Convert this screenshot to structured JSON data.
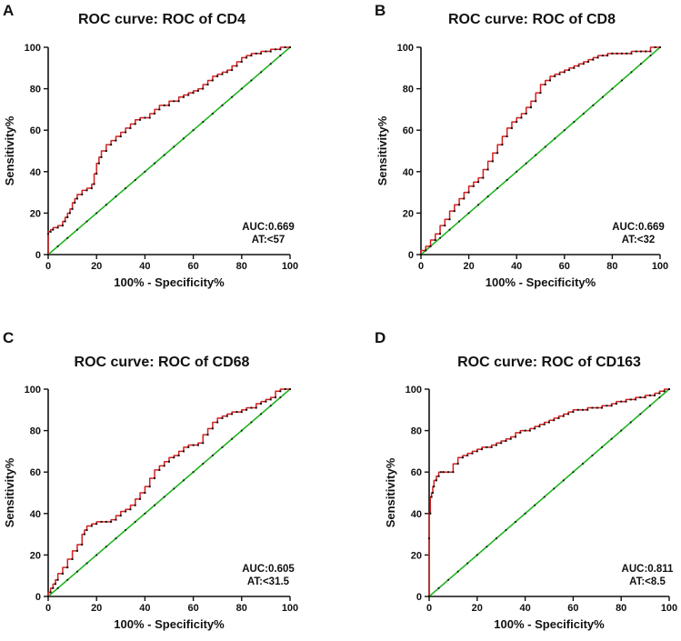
{
  "colors": {
    "roc": "#d22020",
    "reference": "#22b522",
    "axis": "#111111",
    "points": "#111111"
  },
  "chart_data": [
    {
      "panel_letter": "A",
      "type": "line",
      "title": "ROC curve: ROC of CD4",
      "xlabel": "100% - Specificity%",
      "ylabel": "Sensitivity%",
      "xlim": [
        0,
        100
      ],
      "ylim": [
        0,
        100
      ],
      "xticks": [
        0,
        20,
        40,
        60,
        80,
        100
      ],
      "yticks": [
        0,
        20,
        40,
        60,
        80,
        100
      ],
      "auc_label": "AUC:0.669",
      "at_label": "AT:<57",
      "series": [
        {
          "name": "ROC",
          "x": [
            0,
            0,
            1,
            2,
            4,
            6,
            7,
            8,
            9,
            10,
            11,
            12,
            14,
            16,
            18,
            19,
            20,
            21,
            22,
            24,
            26,
            28,
            30,
            32,
            34,
            36,
            38,
            40,
            42,
            44,
            46,
            48,
            50,
            52,
            54,
            56,
            58,
            60,
            62,
            64,
            66,
            68,
            70,
            72,
            74,
            76,
            78,
            80,
            82,
            84,
            86,
            88,
            90,
            92,
            94,
            96,
            98,
            100
          ],
          "y": [
            0,
            10,
            11,
            12,
            13,
            14,
            16,
            18,
            20,
            22,
            25,
            27,
            29,
            31,
            32,
            34,
            39,
            44,
            47,
            50,
            53,
            55,
            57,
            59,
            61,
            63,
            65,
            66,
            66,
            68,
            70,
            72,
            72,
            74,
            74,
            76,
            77,
            78,
            79,
            80,
            82,
            84,
            86,
            87,
            88,
            89,
            91,
            93,
            95,
            96,
            97,
            97,
            98,
            98,
            99,
            99,
            100,
            100
          ]
        },
        {
          "name": "Reference",
          "x": [
            0,
            100
          ],
          "y": [
            0,
            100
          ]
        }
      ]
    },
    {
      "panel_letter": "B",
      "type": "line",
      "title": "ROC curve: ROC of CD8",
      "xlabel": "100% - Specificity%",
      "ylabel": "Sensitivity%",
      "xlim": [
        0,
        100
      ],
      "ylim": [
        0,
        100
      ],
      "xticks": [
        0,
        20,
        40,
        60,
        80,
        100
      ],
      "yticks": [
        0,
        20,
        40,
        60,
        80,
        100
      ],
      "auc_label": "AUC:0.669",
      "at_label": "AT:<32",
      "series": [
        {
          "name": "ROC",
          "x": [
            0,
            2,
            4,
            6,
            8,
            10,
            12,
            14,
            16,
            18,
            20,
            22,
            24,
            26,
            28,
            30,
            32,
            34,
            36,
            38,
            40,
            42,
            44,
            46,
            48,
            50,
            52,
            54,
            56,
            58,
            60,
            62,
            64,
            66,
            68,
            70,
            72,
            74,
            76,
            78,
            80,
            82,
            84,
            86,
            88,
            90,
            92,
            94,
            96,
            98,
            100
          ],
          "y": [
            0,
            2,
            4,
            7,
            10,
            14,
            17,
            21,
            24,
            27,
            30,
            33,
            35,
            37,
            41,
            45,
            49,
            53,
            57,
            61,
            64,
            66,
            68,
            71,
            74,
            78,
            82,
            84,
            86,
            87,
            88,
            89,
            90,
            91,
            92,
            93,
            94,
            95,
            96,
            96,
            97,
            97,
            97,
            97,
            97,
            98,
            98,
            98,
            98,
            100,
            100
          ]
        },
        {
          "name": "Reference",
          "x": [
            0,
            100
          ],
          "y": [
            0,
            100
          ]
        }
      ]
    },
    {
      "panel_letter": "C",
      "type": "line",
      "title": "ROC curve: ROC of CD68",
      "xlabel": "100% - Specificity%",
      "ylabel": "Sensitivity%",
      "xlim": [
        0,
        100
      ],
      "ylim": [
        0,
        100
      ],
      "xticks": [
        0,
        20,
        40,
        60,
        80,
        100
      ],
      "yticks": [
        0,
        20,
        40,
        60,
        80,
        100
      ],
      "auc_label": "AUC:0.605",
      "at_label": "AT:<31.5",
      "series": [
        {
          "name": "ROC",
          "x": [
            0,
            1,
            2,
            3,
            4,
            6,
            8,
            10,
            12,
            14,
            15,
            16,
            18,
            20,
            22,
            24,
            26,
            28,
            30,
            32,
            34,
            36,
            38,
            40,
            42,
            44,
            46,
            48,
            50,
            52,
            54,
            56,
            58,
            60,
            62,
            64,
            66,
            68,
            70,
            72,
            74,
            76,
            78,
            80,
            82,
            84,
            86,
            88,
            90,
            92,
            94,
            96,
            98,
            100
          ],
          "y": [
            0,
            2,
            4,
            6,
            8,
            11,
            14,
            18,
            22,
            25,
            30,
            32,
            34,
            35,
            36,
            36,
            36,
            37,
            39,
            41,
            42,
            44,
            47,
            50,
            53,
            57,
            61,
            63,
            65,
            67,
            68,
            70,
            72,
            73,
            73,
            74,
            78,
            81,
            84,
            86,
            87,
            88,
            89,
            89,
            90,
            91,
            91,
            93,
            94,
            95,
            96,
            99,
            100,
            100
          ]
        },
        {
          "name": "Reference",
          "x": [
            0,
            100
          ],
          "y": [
            0,
            100
          ]
        }
      ]
    },
    {
      "panel_letter": "D",
      "type": "line",
      "title": "ROC curve: ROC of CD163",
      "xlabel": "100% - Specificity%",
      "ylabel": "Sensitivity%",
      "xlim": [
        0,
        100
      ],
      "ylim": [
        0,
        100
      ],
      "xticks": [
        0,
        20,
        40,
        60,
        80,
        100
      ],
      "yticks": [
        0,
        20,
        40,
        60,
        80,
        100
      ],
      "auc_label": "AUC:0.811",
      "at_label": "AT:<8.5",
      "series": [
        {
          "name": "ROC",
          "x": [
            0,
            0,
            0.5,
            1,
            1.5,
            2,
            3,
            4,
            5,
            6,
            8,
            10,
            12,
            14,
            16,
            18,
            20,
            22,
            24,
            26,
            28,
            30,
            32,
            34,
            36,
            38,
            40,
            42,
            44,
            46,
            48,
            50,
            52,
            54,
            56,
            58,
            60,
            62,
            64,
            66,
            68,
            70,
            72,
            74,
            76,
            78,
            80,
            82,
            84,
            86,
            88,
            90,
            92,
            94,
            96,
            98,
            100
          ],
          "y": [
            0,
            28,
            40,
            48,
            50,
            53,
            56,
            58,
            60,
            60,
            60,
            60,
            64,
            67,
            68,
            69,
            70,
            71,
            72,
            72,
            73,
            74,
            75,
            76,
            77,
            79,
            80,
            80,
            81,
            82,
            83,
            84,
            85,
            86,
            87,
            88,
            89,
            90,
            90,
            90,
            91,
            91,
            91,
            92,
            92,
            93,
            94,
            94,
            95,
            95,
            96,
            96,
            97,
            97,
            98,
            99,
            100
          ]
        },
        {
          "name": "Reference",
          "x": [
            0,
            100
          ],
          "y": [
            0,
            100
          ]
        }
      ]
    }
  ]
}
